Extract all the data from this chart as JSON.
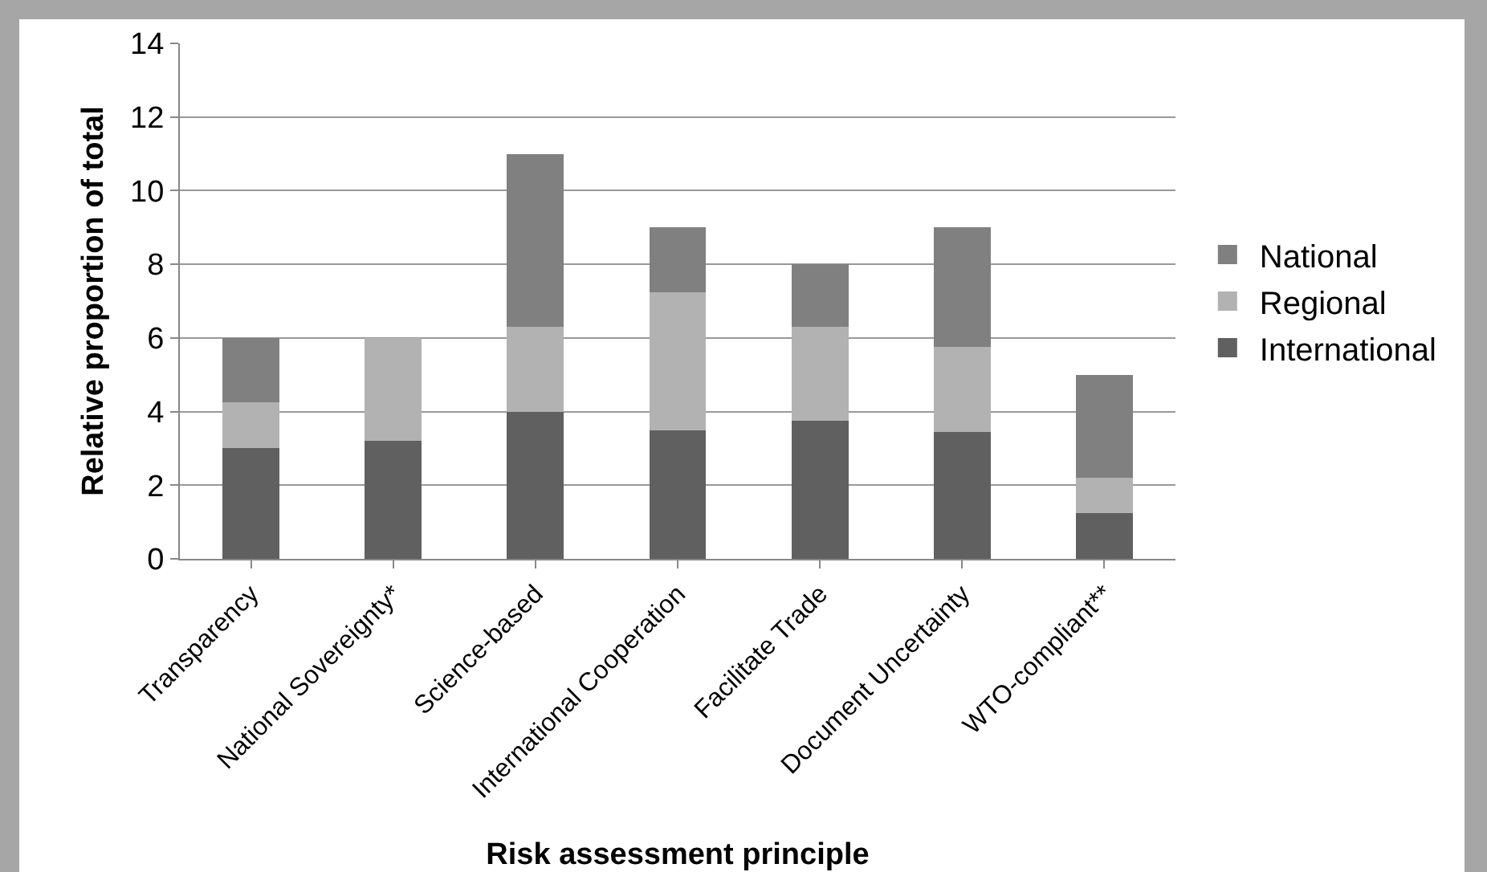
{
  "chart_data": {
    "type": "bar",
    "stacked": true,
    "xlabel": "Risk assessment principle",
    "ylabel": "Relative proportion of total",
    "categories": [
      "Transparency",
      "National Sovereignty*",
      "Science-based",
      "International Cooperation",
      "Facilitate Trade",
      "Document Uncertainty",
      "WTO-compliant**"
    ],
    "series": [
      {
        "name": "International",
        "color": "#606060",
        "values": [
          3,
          3.2,
          4,
          3.5,
          3.75,
          3.45,
          1.25
        ]
      },
      {
        "name": "Regional",
        "color": "#b2b2b2",
        "values": [
          1.25,
          2.8,
          2.3,
          3.75,
          2.55,
          2.3,
          0.95
        ]
      },
      {
        "name": "National",
        "color": "#808080",
        "values": [
          1.75,
          0,
          4.7,
          1.75,
          1.7,
          3.25,
          2.8
        ]
      }
    ],
    "ylim": [
      0,
      14
    ],
    "yticks": [
      0,
      2,
      4,
      6,
      8,
      10,
      12,
      14
    ],
    "grid": "y",
    "legend": "right"
  }
}
